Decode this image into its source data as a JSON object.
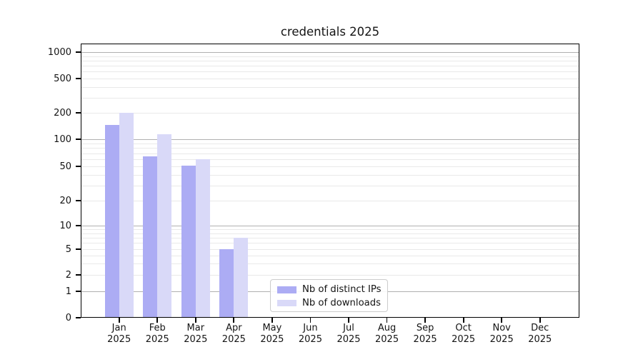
{
  "chart_data": {
    "type": "bar",
    "title": "credentials 2025",
    "xlabel": "",
    "ylabel": "",
    "categories": [
      {
        "month": "Jan",
        "year": "2025"
      },
      {
        "month": "Feb",
        "year": "2025"
      },
      {
        "month": "Mar",
        "year": "2025"
      },
      {
        "month": "Apr",
        "year": "2025"
      },
      {
        "month": "May",
        "year": "2025"
      },
      {
        "month": "Jun",
        "year": "2025"
      },
      {
        "month": "Jul",
        "year": "2025"
      },
      {
        "month": "Aug",
        "year": "2025"
      },
      {
        "month": "Sep",
        "year": "2025"
      },
      {
        "month": "Oct",
        "year": "2025"
      },
      {
        "month": "Nov",
        "year": "2025"
      },
      {
        "month": "Dec",
        "year": "2025"
      }
    ],
    "series": [
      {
        "name": "Nb of distinct IPs",
        "color": "#acacf4",
        "values": [
          145,
          65,
          51,
          5,
          0,
          0,
          0,
          0,
          0,
          0,
          0,
          0
        ]
      },
      {
        "name": "Nb of downloads",
        "color": "#d9d9f8",
        "values": [
          200,
          114,
          60,
          7,
          0,
          0,
          0,
          0,
          0,
          0,
          0,
          0
        ]
      }
    ],
    "y_scale": "log-like (ticks 0,1,2,5,10,20,50,100,200,500,1000)",
    "y_ticks": [
      "0",
      "1",
      "2",
      "5",
      "10",
      "20",
      "50",
      "100",
      "200",
      "500",
      "1000"
    ],
    "ylim": [
      0,
      1250
    ],
    "grid": true,
    "legend_position": "lower center-left inside plot",
    "colors": {
      "major_grid": "#b0b0b0",
      "minor_grid": "#e9e9e9",
      "spine": "#000000",
      "text": "#141414",
      "legend_border": "#cccccc",
      "background": "#ffffff"
    }
  }
}
